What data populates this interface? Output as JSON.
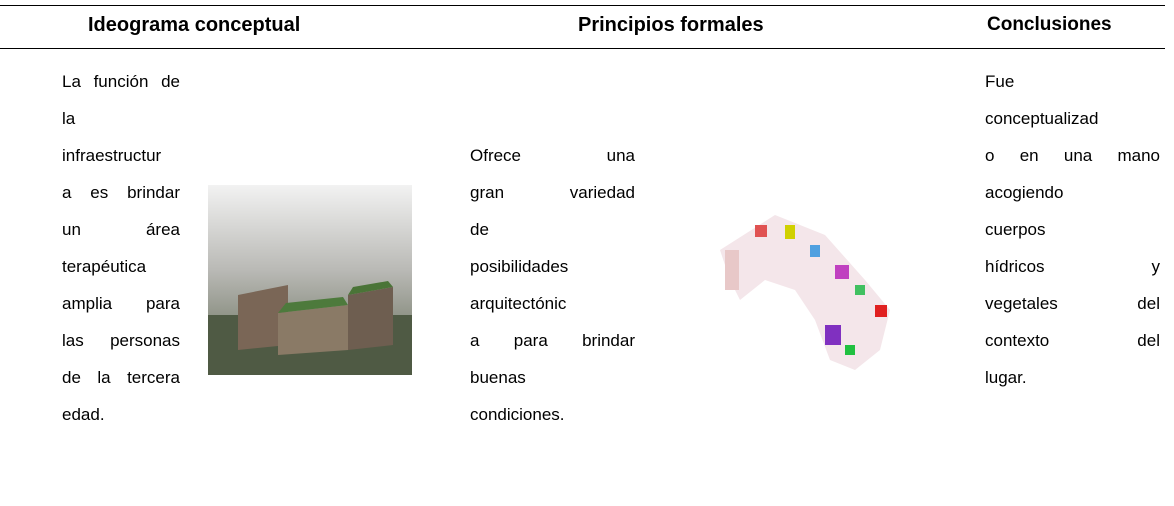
{
  "header": {
    "columns": [
      "Ideograma conceptual",
      "Principios formales",
      "Conclusiones"
    ]
  },
  "cells": [
    {
      "lines": [
        "La función de",
        "la",
        "infraestructur",
        "a es brindar",
        "un área",
        "terapéutica",
        "amplia para",
        "las personas",
        "de la tercera",
        "edad."
      ]
    },
    {
      "lines": [
        "Ofrece una",
        "gran variedad",
        "de",
        "posibilidades",
        "arquitectónic",
        "a para brindar",
        "buenas",
        "condiciones."
      ]
    },
    {
      "lines": [
        "Fue",
        "conceptualizad",
        "o en una mano",
        "acogiendo",
        "cuerpos",
        "hídricos y",
        "vegetales del",
        "contexto del",
        "lugar."
      ]
    }
  ]
}
